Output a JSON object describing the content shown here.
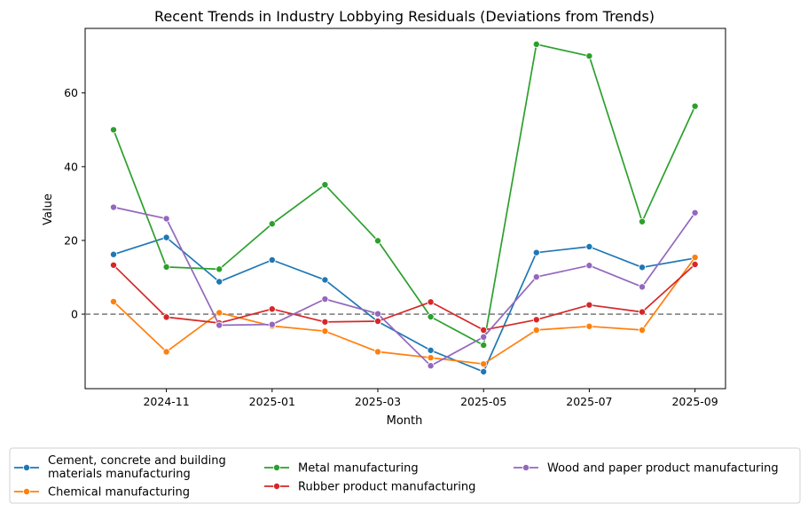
{
  "chart_data": {
    "type": "line",
    "title": "Recent Trends in Industry Lobbying Residuals (Deviations from Trends)",
    "xlabel": "Month",
    "ylabel": "Value",
    "x": [
      "2024-10",
      "2024-11",
      "2024-12",
      "2025-01",
      "2025-02",
      "2025-03",
      "2025-04",
      "2025-05",
      "2025-06",
      "2025-07",
      "2025-08",
      "2025-09"
    ],
    "x_tick_labels": [
      "2024-11",
      "2025-01",
      "2025-03",
      "2025-05",
      "2025-07",
      "2025-09"
    ],
    "y_ticks": [
      0,
      20,
      40,
      60
    ],
    "ylim": [
      -20.2,
      77.5
    ],
    "reference_line": 0,
    "grid": false,
    "legend_position": "bottom",
    "series": [
      {
        "name": "Cement, concrete and building materials manufacturing",
        "legend_lines": [
          "Cement, concrete and building",
          "materials manufacturing"
        ],
        "color": "#1f77b4",
        "values": [
          16.2,
          20.8,
          8.8,
          14.7,
          9.3,
          -2.0,
          -9.8,
          -15.6,
          16.7,
          18.3,
          12.7,
          15.2
        ]
      },
      {
        "name": "Chemical manufacturing",
        "legend_lines": [
          "Chemical manufacturing"
        ],
        "color": "#ff7f0e",
        "values": [
          3.4,
          -10.2,
          0.4,
          -3.2,
          -4.6,
          -10.2,
          -11.8,
          -13.5,
          -4.3,
          -3.3,
          -4.3,
          15.4
        ]
      },
      {
        "name": "Metal manufacturing",
        "legend_lines": [
          "Metal manufacturing"
        ],
        "color": "#2ca02c",
        "values": [
          50.0,
          12.8,
          12.2,
          24.5,
          35.1,
          19.9,
          -0.7,
          -8.4,
          73.2,
          70.0,
          25.1,
          56.4
        ]
      },
      {
        "name": "Rubber product manufacturing",
        "legend_lines": [
          "Rubber product manufacturing"
        ],
        "color": "#d62728",
        "values": [
          13.3,
          -0.8,
          -2.4,
          1.4,
          -2.1,
          -1.9,
          3.3,
          -4.3,
          -1.5,
          2.5,
          0.6,
          13.5
        ]
      },
      {
        "name": "Wood and paper product manufacturing",
        "legend_lines": [
          "Wood and paper product manufacturing"
        ],
        "color": "#9467bd",
        "values": [
          29.0,
          25.9,
          -3.0,
          -2.8,
          4.1,
          0.1,
          -14.0,
          -6.2,
          10.1,
          13.2,
          7.4,
          27.5
        ]
      }
    ]
  }
}
